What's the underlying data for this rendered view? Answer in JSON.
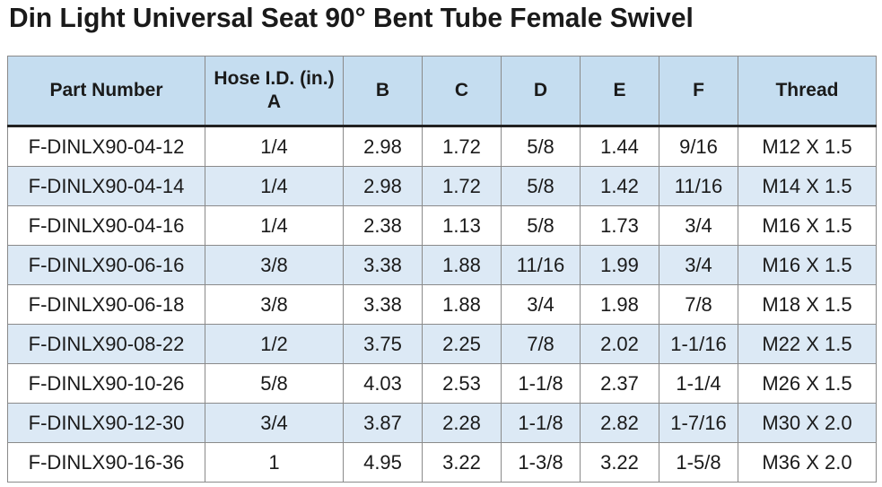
{
  "title": "Din Light Universal Seat 90° Bent Tube Female Swivel",
  "header": {
    "part_number": "Part Number",
    "hose_id_line1": "Hose I.D. (in.)",
    "hose_id_line2": "A",
    "b": "B",
    "c": "C",
    "d": "D",
    "e": "E",
    "f": "F",
    "thread": "Thread"
  },
  "rows": [
    [
      "F-DINLX90-04-12",
      "1/4",
      "2.98",
      "1.72",
      "5/8",
      "1.44",
      "9/16",
      "M12 X 1.5"
    ],
    [
      "F-DINLX90-04-14",
      "1/4",
      "2.98",
      "1.72",
      "5/8",
      "1.42",
      "11/16",
      "M14 X 1.5"
    ],
    [
      "F-DINLX90-04-16",
      "1/4",
      "2.38",
      "1.13",
      "5/8",
      "1.73",
      "3/4",
      "M16 X 1.5"
    ],
    [
      "F-DINLX90-06-16",
      "3/8",
      "3.38",
      "1.88",
      "11/16",
      "1.99",
      "3/4",
      "M16 X 1.5"
    ],
    [
      "F-DINLX90-06-18",
      "3/8",
      "3.38",
      "1.88",
      "3/4",
      "1.98",
      "7/8",
      "M18 X 1.5"
    ],
    [
      "F-DINLX90-08-22",
      "1/2",
      "3.75",
      "2.25",
      "7/8",
      "2.02",
      "1-1/16",
      "M22 X 1.5"
    ],
    [
      "F-DINLX90-10-26",
      "5/8",
      "4.03",
      "2.53",
      "1-1/8",
      "2.37",
      "1-1/4",
      "M26 X 1.5"
    ],
    [
      "F-DINLX90-12-30",
      "3/4",
      "3.87",
      "2.28",
      "1-1/8",
      "2.82",
      "1-7/16",
      "M30 X 2.0"
    ],
    [
      "F-DINLX90-16-36",
      "1",
      "4.95",
      "3.22",
      "1-3/8",
      "3.22",
      "1-5/8",
      "M36 X 2.0"
    ]
  ],
  "colors": {
    "header_bg": "#c5ddf0",
    "stripe_bg": "#dce9f5"
  }
}
